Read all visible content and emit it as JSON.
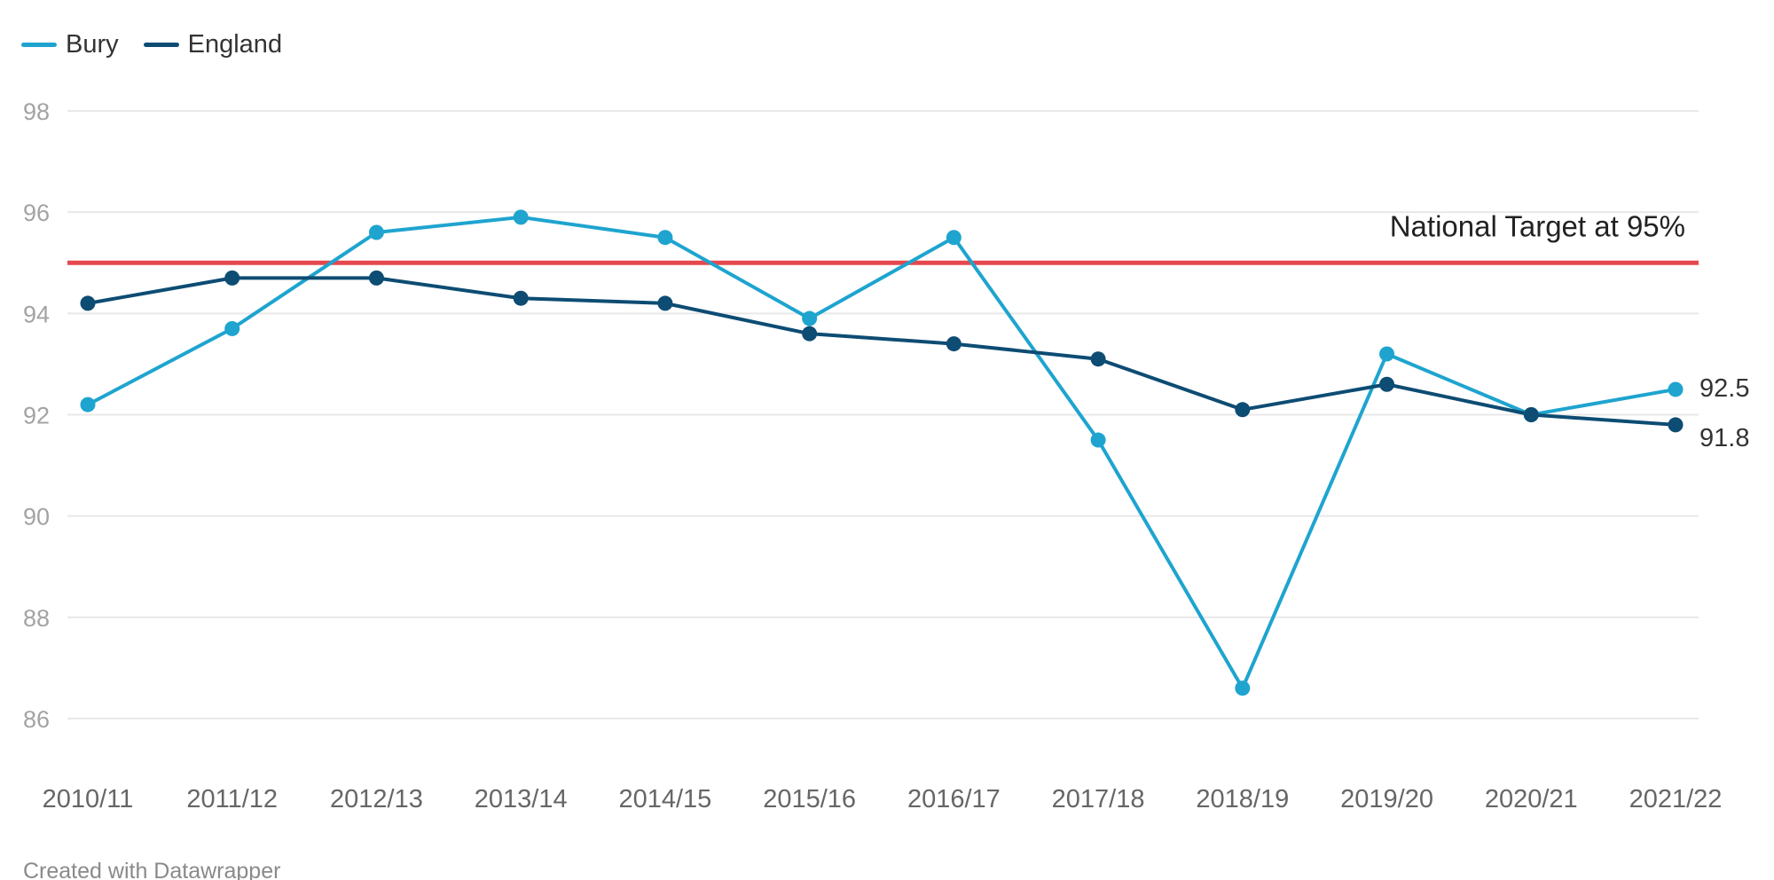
{
  "chart_data": {
    "type": "line",
    "categories": [
      "2010/11",
      "2011/12",
      "2012/13",
      "2013/14",
      "2014/15",
      "2015/16",
      "2016/17",
      "2017/18",
      "2018/19",
      "2019/20",
      "2020/21",
      "2021/22"
    ],
    "series": [
      {
        "name": "Bury",
        "color": "#1ea4cf",
        "values": [
          92.2,
          93.7,
          95.6,
          95.9,
          95.5,
          93.9,
          95.5,
          91.5,
          86.6,
          93.2,
          92.0,
          92.5
        ],
        "end_label": "92.5"
      },
      {
        "name": "England",
        "color": "#0d4c73",
        "values": [
          94.2,
          94.7,
          94.7,
          94.3,
          94.2,
          93.6,
          93.4,
          93.1,
          92.1,
          92.6,
          92.0,
          91.8
        ],
        "end_label": "91.8"
      }
    ],
    "y_ticks": [
      "98",
      "96",
      "94",
      "92",
      "90",
      "88",
      "86"
    ],
    "ylim": [
      85,
      98
    ],
    "grid": true,
    "legend_position": "top-left",
    "reference_line": {
      "value": 95,
      "label": "National Target at 95%",
      "color": "#e5484d"
    },
    "title": "",
    "xlabel": "",
    "ylabel": ""
  },
  "footer": {
    "credit": "Created with Datawrapper"
  }
}
